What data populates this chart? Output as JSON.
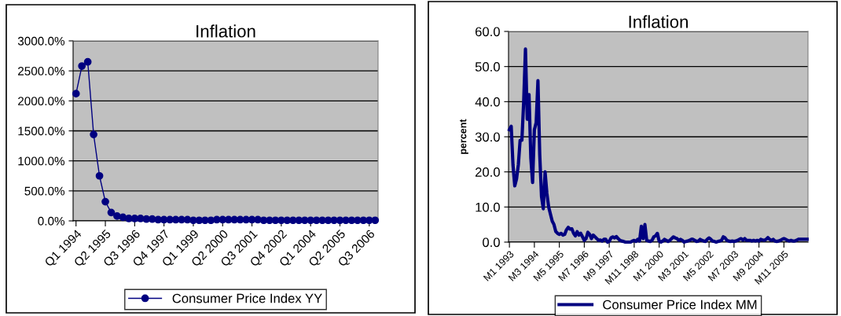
{
  "chart_data": [
    {
      "type": "line",
      "title": "Inflation",
      "categories": [
        "Q1 1994",
        null,
        null,
        null,
        null,
        "Q2 1995",
        null,
        null,
        null,
        null,
        "Q3 1996",
        null,
        null,
        null,
        null,
        "Q4 1997",
        null,
        null,
        null,
        null,
        "Q1 1999",
        null,
        null,
        null,
        null,
        "Q2 2000",
        null,
        null,
        null,
        null,
        "Q3 2001",
        null,
        null,
        null,
        null,
        "Q4 2002",
        null,
        null,
        null,
        null,
        "Q1 2004",
        null,
        null,
        null,
        null,
        "Q2 2005",
        null,
        null,
        null,
        null,
        "Q3 2006",
        null
      ],
      "series": [
        {
          "name": "Consumer Price Index YY",
          "color": "#000080",
          "values": [
            2120,
            2580,
            2650,
            1440,
            750,
            320,
            140,
            80,
            60,
            40,
            40,
            40,
            30,
            30,
            20,
            20,
            20,
            20,
            20,
            20,
            10,
            10,
            10,
            10,
            20,
            20,
            20,
            20,
            20,
            20,
            20,
            20,
            10,
            10,
            10,
            10,
            10,
            10,
            10,
            10,
            10,
            10,
            10,
            10,
            10,
            10,
            10,
            10,
            10,
            10,
            10,
            10
          ]
        }
      ],
      "ylim": [
        0,
        3000
      ],
      "yticks": [
        {
          "value": 0,
          "label": "0.0%"
        },
        {
          "value": 500,
          "label": "500.0%"
        },
        {
          "value": 1000,
          "label": "1000.0%"
        },
        {
          "value": 1500,
          "label": "1500.0%"
        },
        {
          "value": 2000,
          "label": "2000.0%"
        },
        {
          "value": 2500,
          "label": "2500.0%"
        },
        {
          "value": 3000,
          "label": "3000.0%"
        }
      ],
      "grid": "y",
      "legend": "bottom",
      "marker": "circle",
      "line_style": "solid"
    },
    {
      "type": "line",
      "title": "Inflation",
      "ylabel": "percent",
      "categories": [
        "M1 1993",
        null,
        null,
        null,
        null,
        null,
        null,
        null,
        null,
        null,
        null,
        null,
        null,
        null,
        "M3 1994",
        null,
        null,
        null,
        null,
        null,
        null,
        null,
        null,
        null,
        null,
        null,
        null,
        null,
        "M5 1995",
        null,
        null,
        null,
        null,
        null,
        null,
        null,
        null,
        null,
        null,
        null,
        null,
        null,
        "M7 1996",
        null,
        null,
        null,
        null,
        null,
        null,
        null,
        null,
        null,
        null,
        null,
        null,
        null,
        "M9 1997",
        null,
        null,
        null,
        null,
        null,
        null,
        null,
        null,
        null,
        null,
        null,
        null,
        null,
        "M11 1998",
        null,
        null,
        null,
        null,
        null,
        null,
        null,
        null,
        null,
        null,
        null,
        null,
        null,
        "M1 2000",
        null,
        null,
        null,
        null,
        null,
        null,
        null,
        null,
        null,
        null,
        null,
        null,
        null,
        "M3 2001",
        null,
        null,
        null,
        null,
        null,
        null,
        null,
        null,
        null,
        null,
        null,
        null,
        null,
        "M5 2002",
        null,
        null,
        null,
        null,
        null,
        null,
        null,
        null,
        null,
        null,
        null,
        null,
        null,
        "M7 2003",
        null,
        null,
        null,
        null,
        null,
        null,
        null,
        null,
        null,
        null,
        null,
        null,
        null,
        "M9 2004",
        null,
        null,
        null,
        null,
        null,
        null,
        null,
        null,
        null,
        null,
        null,
        null,
        null,
        "M11 2005",
        null,
        null,
        null,
        null,
        null,
        null,
        null,
        null,
        null,
        null,
        null,
        null,
        null
      ],
      "series": [
        {
          "name": "Consumer Price Index MM",
          "color": "#000080",
          "values": [
            32,
            33,
            22,
            16,
            18,
            22,
            29,
            29,
            40,
            55,
            35,
            42,
            24,
            17,
            32,
            34,
            46,
            25,
            13,
            9.5,
            20,
            14,
            10,
            8,
            6,
            5,
            3,
            2.5,
            2.2,
            2.5,
            2,
            2.2,
            3.5,
            4.2,
            3.7,
            3.8,
            2.5,
            1.8,
            3,
            2,
            2.5,
            1.5,
            0.5,
            1,
            2.8,
            2.2,
            1,
            2,
            1.5,
            1,
            0.5,
            0.6,
            0.3,
            0.8,
            0.8,
            0,
            0.2,
            1.2,
            1.5,
            1.2,
            1.6,
            1,
            0.5,
            0.3,
            0.2,
            0,
            0,
            0,
            0,
            0.3,
            0.5,
            0.2,
            0.8,
            0.3,
            4.5,
            1,
            5,
            0.5,
            0.3,
            0.2,
            0.5,
            1.5,
            1.8,
            2.5,
            0.3,
            0,
            0.3,
            0.8,
            0.5,
            0.2,
            0.5,
            1,
            1.5,
            1.2,
            1,
            0.5,
            0.8,
            0.5,
            0,
            0.2,
            0.3,
            0.5,
            0.8,
            0.8,
            0.5,
            0.2,
            0.3,
            0.8,
            0.5,
            0.3,
            0.2,
            0.8,
            1.2,
            0.8,
            0.3,
            0.2,
            0,
            0.2,
            0.3,
            0.5,
            1.5,
            1.2,
            0.5,
            0.3,
            0.2,
            0.3,
            0.2,
            0.3,
            0.5,
            0.8,
            1,
            0.6,
            1,
            0.5,
            0.5,
            0.5,
            0.3,
            0.5,
            0.3,
            0.5,
            0.3,
            0.8,
            0.6,
            0.5,
            0.8,
            1.3,
            0.8,
            0.5,
            0.8,
            0.3,
            0.2,
            0.3,
            0.5,
            0.8,
            1,
            0.8,
            0.5,
            0.3,
            0.5,
            0.3,
            0.3,
            0.5,
            0.8,
            0.8,
            0.8,
            0.8,
            0.8,
            0.8
          ]
        }
      ],
      "ylim": [
        0,
        60
      ],
      "yticks": [
        {
          "value": 0,
          "label": "0.0"
        },
        {
          "value": 10,
          "label": "10.0"
        },
        {
          "value": 20,
          "label": "20.0"
        },
        {
          "value": 30,
          "label": "30.0"
        },
        {
          "value": 40,
          "label": "40.0"
        },
        {
          "value": 50,
          "label": "50.0"
        },
        {
          "value": 60,
          "label": "60.0"
        }
      ],
      "grid": "y",
      "legend": "bottom",
      "marker": "none",
      "line_style": "solid"
    }
  ]
}
